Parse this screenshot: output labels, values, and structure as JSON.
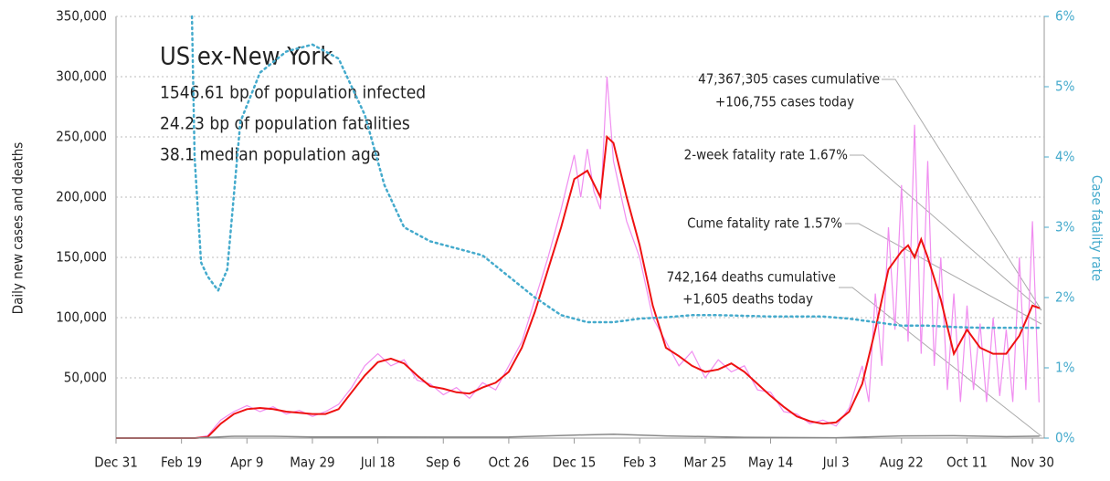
{
  "chart_data": {
    "type": "line",
    "title": "US ex-New York",
    "subtitle_lines": [
      "1546.61 bp of population infected",
      "24.23 bp of population fatalities",
      "38.1 median population age"
    ],
    "annotations": [
      "47,367,305 cases cumulative",
      "+106,755 cases today",
      "2-week fatality rate 1.67%",
      "Cume fatality rate 1.57%",
      "742,164 deaths cumulative",
      "+1,605 deaths today"
    ],
    "y_label": "Daily new cases and deaths",
    "y2_label": "Case fatality rate",
    "xlim": [
      0,
      709
    ],
    "xticks": [
      {
        "value": 0,
        "label": "Dec 31"
      },
      {
        "value": 50,
        "label": "Feb 19"
      },
      {
        "value": 100,
        "label": "Apr 9"
      },
      {
        "value": 150,
        "label": "May 29"
      },
      {
        "value": 200,
        "label": "Jul 18"
      },
      {
        "value": 250,
        "label": "Sep 6"
      },
      {
        "value": 300,
        "label": "Oct 26"
      },
      {
        "value": 350,
        "label": "Dec 15"
      },
      {
        "value": 400,
        "label": "Feb 3"
      },
      {
        "value": 450,
        "label": "Mar 25"
      },
      {
        "value": 500,
        "label": "May 14"
      },
      {
        "value": 550,
        "label": "Jul 3"
      },
      {
        "value": 600,
        "label": "Aug 22"
      },
      {
        "value": 650,
        "label": "Oct 11"
      },
      {
        "value": 700,
        "label": "Nov 30"
      }
    ],
    "ylim": [
      0,
      350000
    ],
    "yticks": [
      {
        "value": 50000,
        "label": "50,000"
      },
      {
        "value": 100000,
        "label": "100,000"
      },
      {
        "value": 150000,
        "label": "150,000"
      },
      {
        "value": 200000,
        "label": "200,000"
      },
      {
        "value": 250000,
        "label": "250,000"
      },
      {
        "value": 300000,
        "label": "300,000"
      },
      {
        "value": 350000,
        "label": "350,000"
      }
    ],
    "y2lim": [
      0,
      6
    ],
    "y2ticks": [
      {
        "value": 0,
        "label": "0%"
      },
      {
        "value": 1,
        "label": "1%"
      },
      {
        "value": 2,
        "label": "2%"
      },
      {
        "value": 3,
        "label": "3%"
      },
      {
        "value": 4,
        "label": "4%"
      },
      {
        "value": 5,
        "label": "5%"
      },
      {
        "value": 6,
        "label": "6%"
      }
    ],
    "grid": true,
    "series": [
      {
        "color": "#f08ef0",
        "width": 1.2,
        "style": "solid",
        "x": [
          0,
          10,
          20,
          30,
          40,
          50,
          60,
          70,
          80,
          90,
          100,
          110,
          120,
          130,
          140,
          150,
          160,
          170,
          180,
          190,
          200,
          210,
          220,
          230,
          240,
          250,
          260,
          270,
          280,
          290,
          300,
          310,
          320,
          330,
          340,
          350,
          355,
          360,
          365,
          370,
          375,
          380,
          390,
          400,
          410,
          420,
          430,
          440,
          450,
          460,
          470,
          480,
          490,
          500,
          510,
          520,
          530,
          540,
          550,
          560,
          570,
          575,
          580,
          585,
          590,
          595,
          600,
          605,
          610,
          615,
          620,
          625,
          630,
          635,
          640,
          645,
          650,
          655,
          660,
          665,
          670,
          675,
          680,
          685,
          690,
          695,
          700,
          705
        ],
        "values": [
          0,
          0,
          0,
          0,
          0,
          0,
          0,
          2000,
          15000,
          22000,
          27000,
          22000,
          26000,
          20000,
          23000,
          18000,
          22000,
          28000,
          42000,
          60000,
          70000,
          60000,
          65000,
          48000,
          45000,
          36000,
          42000,
          33000,
          46000,
          40000,
          60000,
          80000,
          115000,
          150000,
          190000,
          235000,
          200000,
          240000,
          205000,
          190000,
          300000,
          230000,
          180000,
          150000,
          100000,
          80000,
          60000,
          72000,
          50000,
          65000,
          55000,
          60000,
          40000,
          38000,
          22000,
          20000,
          12000,
          15000,
          10000,
          25000,
          60000,
          30000,
          120000,
          60000,
          175000,
          90000,
          210000,
          80000,
          260000,
          70000,
          230000,
          60000,
          150000,
          40000,
          120000,
          30000,
          110000,
          40000,
          95000,
          30000,
          100000,
          35000,
          90000,
          30000,
          150000,
          40000,
          180000,
          30000
        ]
      },
      {
        "color": "#ee1111",
        "width": 2,
        "style": "solid",
        "x": [
          0,
          10,
          20,
          30,
          40,
          50,
          60,
          70,
          80,
          90,
          100,
          110,
          120,
          130,
          140,
          150,
          160,
          170,
          180,
          190,
          200,
          210,
          220,
          230,
          240,
          250,
          260,
          270,
          280,
          290,
          300,
          310,
          320,
          330,
          340,
          350,
          360,
          370,
          375,
          380,
          390,
          400,
          410,
          420,
          430,
          440,
          450,
          460,
          470,
          480,
          490,
          500,
          510,
          520,
          530,
          540,
          550,
          560,
          570,
          580,
          590,
          600,
          605,
          610,
          615,
          620,
          630,
          640,
          650,
          660,
          670,
          680,
          690,
          700,
          705
        ],
        "values": [
          0,
          0,
          0,
          0,
          0,
          0,
          0,
          1000,
          12000,
          20000,
          24000,
          25000,
          24000,
          22000,
          21000,
          20000,
          20000,
          24000,
          38000,
          52000,
          63000,
          66000,
          62000,
          52000,
          43000,
          41000,
          38000,
          37000,
          42000,
          46000,
          55000,
          75000,
          105000,
          140000,
          175000,
          215000,
          222000,
          200000,
          250000,
          245000,
          200000,
          160000,
          110000,
          75000,
          68000,
          60000,
          55000,
          57000,
          62000,
          55000,
          45000,
          35000,
          26000,
          18000,
          14000,
          12000,
          13000,
          22000,
          45000,
          90000,
          140000,
          155000,
          160000,
          150000,
          165000,
          150000,
          115000,
          70000,
          90000,
          75000,
          70000,
          70000,
          85000,
          110000,
          108000
        ]
      },
      {
        "color": "#888888",
        "width": 1.5,
        "style": "solid",
        "x": [
          0,
          60,
          90,
          120,
          150,
          200,
          250,
          300,
          350,
          380,
          420,
          480,
          550,
          600,
          640,
          680,
          705
        ],
        "values": [
          0,
          0,
          1500,
          1500,
          900,
          900,
          800,
          1000,
          2500,
          3200,
          1800,
          700,
          300,
          1800,
          2000,
          1200,
          1600
        ]
      },
      {
        "color": "#44aacc",
        "width": 2.5,
        "style": "dotted",
        "axis": "y2",
        "x": [
          58,
          60,
          65,
          70,
          78,
          85,
          95,
          110,
          130,
          150,
          170,
          190,
          205,
          220,
          240,
          260,
          280,
          300,
          320,
          340,
          360,
          380,
          400,
          420,
          440,
          460,
          480,
          500,
          520,
          540,
          560,
          580,
          600,
          620,
          640,
          660,
          680,
          705
        ],
        "values": [
          6,
          4,
          2.5,
          2.3,
          2.1,
          2.4,
          4.5,
          5.2,
          5.5,
          5.6,
          5.4,
          4.6,
          3.6,
          3.0,
          2.8,
          2.7,
          2.6,
          2.3,
          2.0,
          1.75,
          1.65,
          1.65,
          1.7,
          1.72,
          1.75,
          1.75,
          1.74,
          1.73,
          1.73,
          1.73,
          1.7,
          1.65,
          1.6,
          1.6,
          1.58,
          1.57,
          1.57,
          1.57
        ]
      }
    ]
  }
}
